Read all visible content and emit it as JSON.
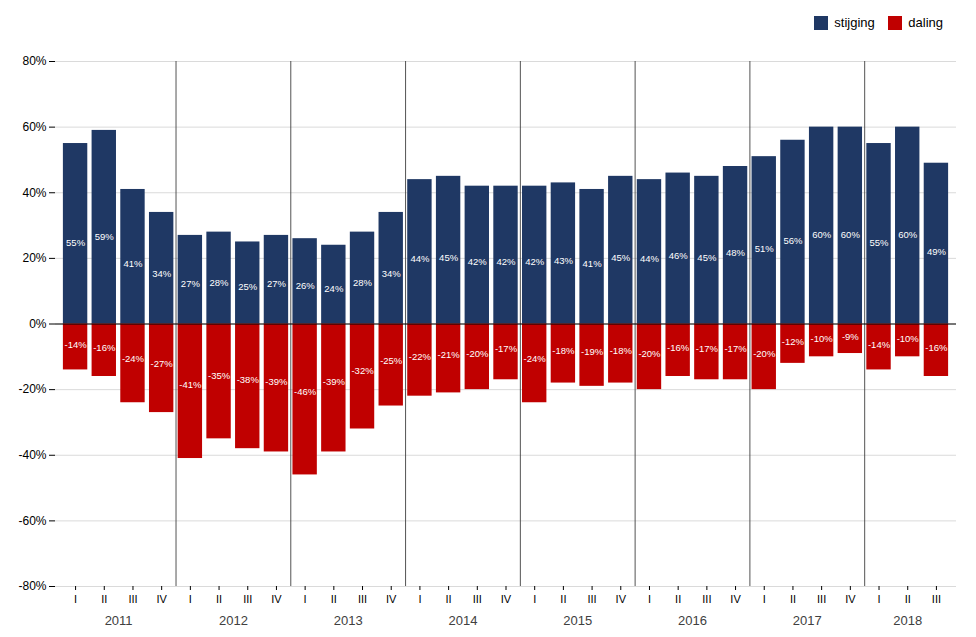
{
  "chart_data": {
    "type": "bar",
    "categories": [
      "I",
      "II",
      "III",
      "IV",
      "I",
      "II",
      "III",
      "IV",
      "I",
      "II",
      "III",
      "IV",
      "I",
      "II",
      "III",
      "IV",
      "I",
      "II",
      "III",
      "IV",
      "I",
      "II",
      "III",
      "IV",
      "I",
      "II",
      "III",
      "IV",
      "I",
      "II",
      "III"
    ],
    "category_groups": [
      "2011",
      "2011",
      "2011",
      "2011",
      "2012",
      "2012",
      "2012",
      "2012",
      "2013",
      "2013",
      "2013",
      "2013",
      "2014",
      "2014",
      "2014",
      "2014",
      "2015",
      "2015",
      "2015",
      "2015",
      "2016",
      "2016",
      "2016",
      "2016",
      "2017",
      "2017",
      "2017",
      "2017",
      "2018",
      "2018",
      "2018"
    ],
    "series": [
      {
        "name": "stijging",
        "color": "#1F3864",
        "values": [
          55,
          59,
          41,
          34,
          27,
          28,
          25,
          27,
          26,
          24,
          28,
          34,
          44,
          45,
          42,
          42,
          42,
          43,
          41,
          45,
          44,
          46,
          45,
          48,
          51,
          56,
          60,
          60,
          55,
          60,
          49
        ],
        "value_labels": [
          "55%",
          "59%",
          "41%",
          "34%",
          "27%",
          "28%",
          "25%",
          "27%",
          "26%",
          "24%",
          "28%",
          "34%",
          "44%",
          "45%",
          "42%",
          "42%",
          "42%",
          "43%",
          "41%",
          "45%",
          "44%",
          "46%",
          "45%",
          "48%",
          "51%",
          "56%",
          "60%",
          "60%",
          "55%",
          "60%",
          "49%"
        ]
      },
      {
        "name": "daling",
        "color": "#C00000",
        "values": [
          -14,
          -16,
          -24,
          -27,
          -41,
          -35,
          -38,
          -39,
          -46,
          -39,
          -32,
          -25,
          -22,
          -21,
          -20,
          -17,
          -24,
          -18,
          -19,
          -18,
          -20,
          -16,
          -17,
          -17,
          -20,
          -12,
          -10,
          -9,
          -14,
          -10,
          -16
        ],
        "value_labels": [
          "-14%",
          "-16%",
          "-24%",
          "-27%",
          "-41%",
          "-35%",
          "-38%",
          "-39%",
          "-46%",
          "-39%",
          "-32%",
          "-25%",
          "-22%",
          "-21%",
          "-20%",
          "-17%",
          "-24%",
          "-18%",
          "-19%",
          "-18%",
          "-20%",
          "-16%",
          "-17%",
          "-17%",
          "-20%",
          "-12%",
          "-10%",
          "-9%",
          "-14%",
          "-10%",
          "-16%"
        ]
      }
    ],
    "ylim": [
      -80,
      80
    ],
    "yticks": [
      {
        "value": -80,
        "label": "-80%"
      },
      {
        "value": -60,
        "label": "-60%"
      },
      {
        "value": -40,
        "label": "-40%"
      },
      {
        "value": -20,
        "label": "-20%"
      },
      {
        "value": 0,
        "label": "0%"
      },
      {
        "value": 20,
        "label": "20%"
      },
      {
        "value": 40,
        "label": "40%"
      },
      {
        "value": 60,
        "label": "60%"
      },
      {
        "value": 80,
        "label": "80%"
      }
    ],
    "grid": true,
    "legend": "upper right",
    "data_labels": true
  }
}
